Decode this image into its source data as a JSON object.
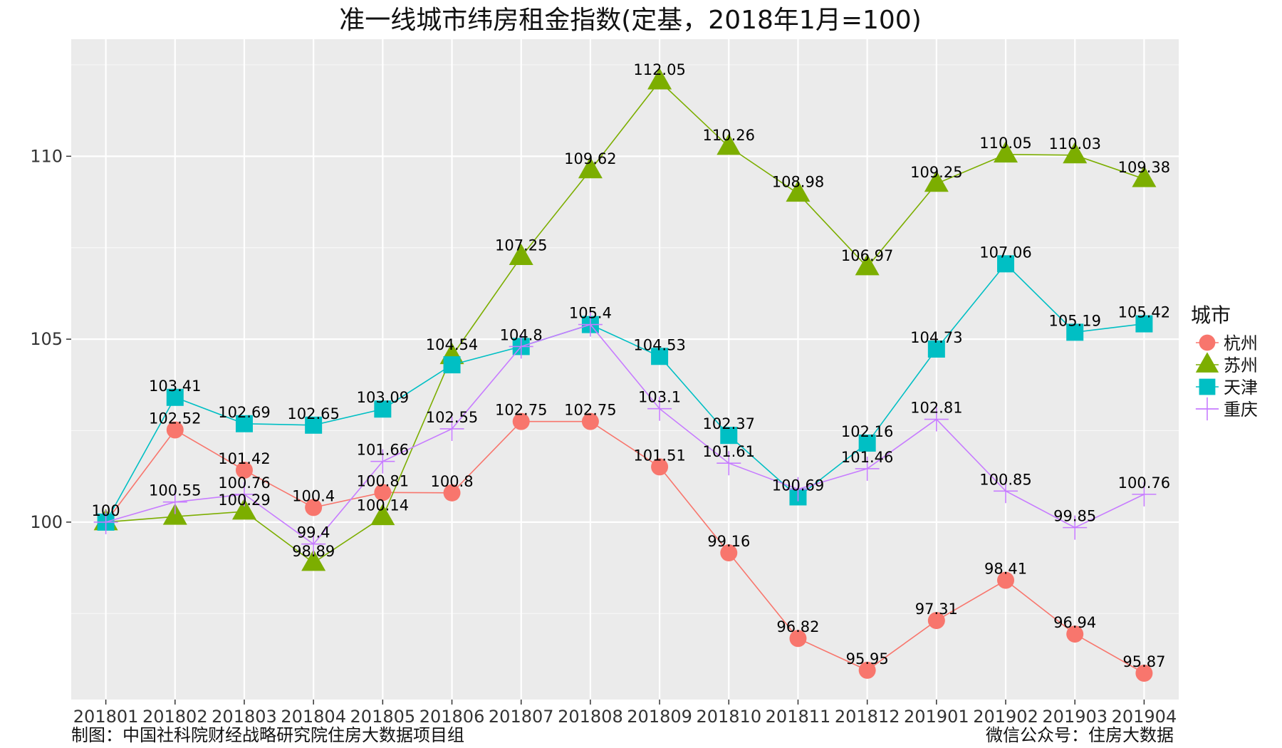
{
  "chart_data": {
    "type": "line",
    "title": "准一线城市纬房租金指数(定基，2018年1月=100)",
    "xlabel": "",
    "ylabel": "",
    "categories": [
      "201801",
      "201802",
      "201803",
      "201804",
      "201805",
      "201806",
      "201807",
      "201808",
      "201809",
      "201810",
      "201811",
      "201812",
      "201901",
      "201902",
      "201903",
      "201904"
    ],
    "ylim": [
      95.15,
      113.2
    ],
    "yticks": [
      100,
      105,
      110
    ],
    "grid": true,
    "legend": {
      "title": "城市",
      "position": "right"
    },
    "series": [
      {
        "name": "杭州",
        "color": "#F8766D",
        "marker": "circle",
        "values": [
          100,
          102.52,
          101.42,
          100.4,
          100.81,
          100.8,
          102.75,
          102.75,
          101.51,
          99.16,
          96.82,
          95.95,
          97.31,
          98.41,
          96.94,
          95.87
        ],
        "labels": [
          "100",
          "102.52",
          "101.42",
          "100.4",
          "100.81",
          "100.8",
          "102.75",
          "102.75",
          "101.51",
          "99.16",
          "96.82",
          "95.95",
          "97.31",
          "98.41",
          "96.94",
          "95.87"
        ]
      },
      {
        "name": "苏州",
        "color": "#7CAE00",
        "marker": "triangle",
        "values": [
          100,
          100.15,
          100.29,
          98.89,
          100.14,
          104.54,
          107.25,
          109.62,
          112.05,
          110.26,
          108.98,
          106.97,
          109.25,
          110.05,
          110.03,
          109.38
        ],
        "labels": [
          "",
          "",
          "100.29",
          "98.89",
          "100.14",
          "104.54",
          "107.25",
          "109.62",
          "112.05",
          "110.26",
          "108.98",
          "106.97",
          "109.25",
          "110.05",
          "110.03",
          "109.38"
        ]
      },
      {
        "name": "天津",
        "color": "#00BFC4",
        "marker": "square",
        "values": [
          100,
          103.41,
          102.69,
          102.65,
          103.09,
          104.3,
          104.8,
          105.4,
          104.53,
          102.37,
          100.69,
          102.16,
          104.73,
          107.06,
          105.19,
          105.42
        ],
        "labels": [
          "",
          "103.41",
          "102.69",
          "102.65",
          "103.09",
          "",
          "104.8",
          "105.4",
          "104.53",
          "102.37",
          "100.69",
          "102.16",
          "104.73",
          "107.06",
          "105.19",
          "105.42"
        ]
      },
      {
        "name": "重庆",
        "color": "#C77CFF",
        "marker": "plus",
        "values": [
          100,
          100.55,
          100.76,
          99.4,
          101.66,
          102.55,
          104.8,
          105.4,
          103.1,
          101.61,
          100.9,
          101.46,
          102.81,
          100.85,
          99.85,
          100.76
        ],
        "labels": [
          "",
          "100.55",
          "100.76",
          "99.4",
          "101.66",
          "102.55",
          "",
          "",
          "103.1",
          "101.61",
          "",
          "101.46",
          "102.81",
          "100.85",
          "99.85",
          "100.76"
        ]
      }
    ]
  },
  "footer": {
    "left": "制图：中国社科院财经战略研究院住房大数据项目组",
    "right": "微信公众号：住房大数据"
  }
}
